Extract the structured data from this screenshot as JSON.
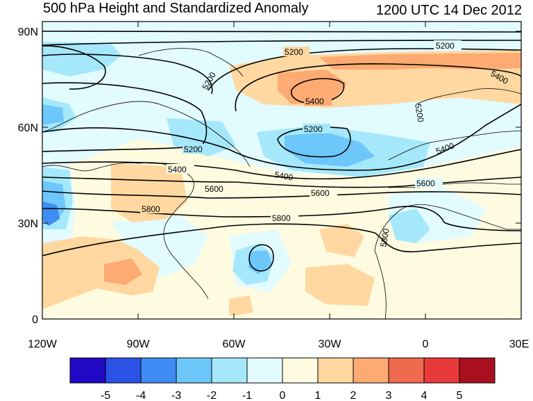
{
  "title": "500 hPa Height and Standardized Anomaly",
  "valid_time": "1200 UTC 14 Dec 2012",
  "map": {
    "lat_labels": [
      "90N",
      "60N",
      "30N",
      "0"
    ],
    "lon_labels": [
      "120W",
      "90W",
      "60W",
      "30W",
      "0",
      "30E"
    ],
    "lat_range": [
      0,
      90
    ],
    "lon_range": [
      -120,
      30
    ]
  },
  "contours": {
    "labels": [
      {
        "text": "5200"
      },
      {
        "text": "5200"
      },
      {
        "text": "5200"
      },
      {
        "text": "5400"
      },
      {
        "text": "5400"
      },
      {
        "text": "5200"
      },
      {
        "text": "5200"
      },
      {
        "text": "5200"
      },
      {
        "text": "5400"
      },
      {
        "text": "5400"
      },
      {
        "text": "5400"
      },
      {
        "text": "5600"
      },
      {
        "text": "5600"
      },
      {
        "text": "5600"
      },
      {
        "text": "5800"
      },
      {
        "text": "5800"
      },
      {
        "text": "5800"
      }
    ]
  },
  "colorbar": {
    "labels": [
      "-5",
      "-4",
      "-3",
      "-2",
      "-1",
      "0",
      "1",
      "2",
      "3",
      "4",
      "5"
    ],
    "colors": [
      "#2208c4",
      "#2a52e6",
      "#3f8cf3",
      "#6ec7fb",
      "#a6e8fb",
      "#e2fbfe",
      "#fefbe0",
      "#fed8a0",
      "#fdaa73",
      "#f06a50",
      "#e83a3a",
      "#a81020"
    ]
  }
}
